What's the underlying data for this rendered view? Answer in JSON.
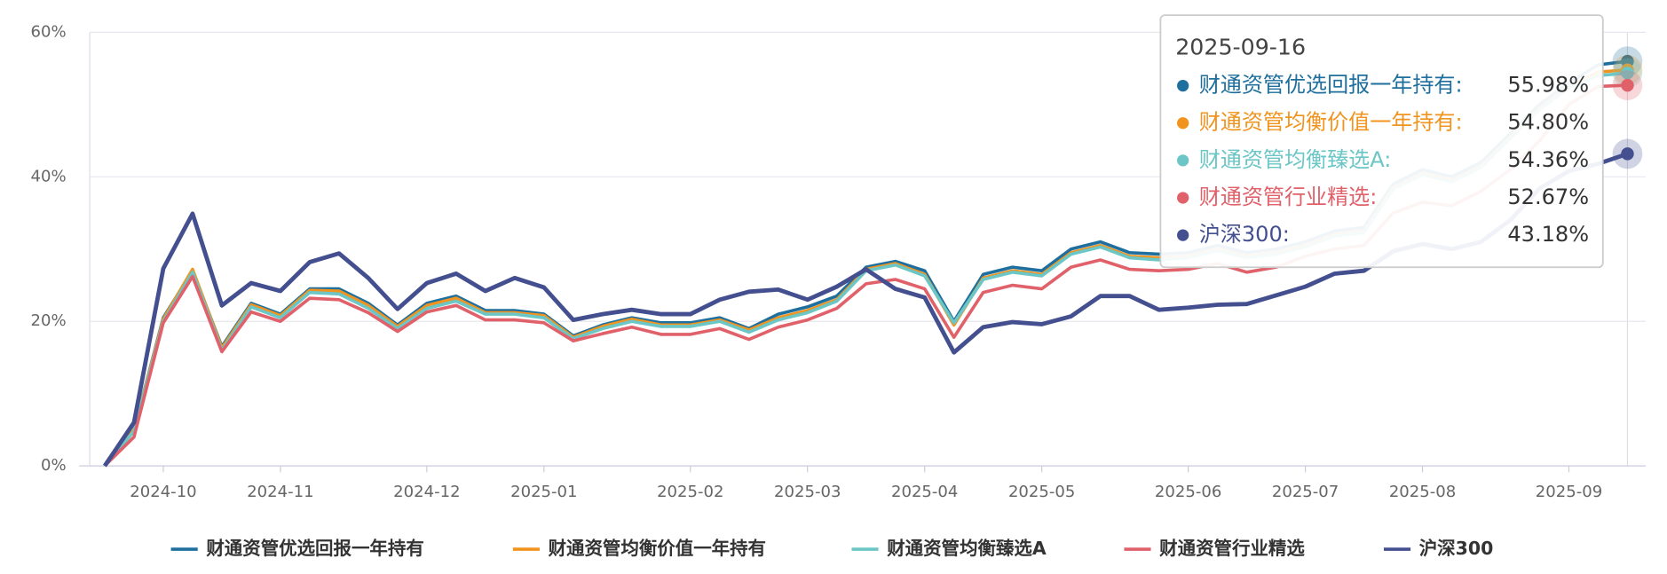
{
  "chart_data": {
    "type": "line",
    "categories": [
      null,
      null,
      "2024-10",
      null,
      null,
      null,
      "2024-11",
      null,
      null,
      null,
      null,
      "2024-12",
      null,
      null,
      null,
      "2025-01",
      null,
      null,
      null,
      null,
      "2025-02",
      null,
      null,
      null,
      "2025-03",
      null,
      null,
      null,
      "2025-04",
      null,
      null,
      null,
      "2025-05",
      null,
      null,
      null,
      null,
      "2025-06",
      null,
      null,
      null,
      "2025-07",
      null,
      null,
      null,
      "2025-08",
      null,
      null,
      null,
      null,
      "2025-09",
      null,
      null
    ],
    "ylim": [
      0,
      60
    ],
    "yticks": [
      {
        "value": 0,
        "label": "0%"
      },
      {
        "value": 20,
        "label": "20%"
      },
      {
        "value": 40,
        "label": "40%"
      },
      {
        "value": 60,
        "label": "60%"
      }
    ],
    "grid": true,
    "legend": "bottom",
    "series": [
      {
        "name": "财通资管优选回报一年持有",
        "color": "#1e6f9e",
        "values": [
          0,
          5,
          20.5,
          27,
          16.5,
          22.5,
          21,
          24.5,
          24.5,
          22.5,
          19.5,
          22.5,
          23.5,
          21.5,
          21.5,
          21,
          18,
          19.5,
          20.5,
          19.8,
          19.8,
          20.5,
          19,
          21,
          22,
          23.5,
          27.5,
          28.3,
          27,
          20,
          26.5,
          27.5,
          27,
          30,
          31,
          29.5,
          29.3,
          29.5,
          30.5,
          29.5,
          30,
          31,
          32.5,
          33,
          39,
          41,
          40,
          42,
          46,
          50,
          53,
          55.5,
          55.98
        ]
      },
      {
        "name": "财通资管均衡价值一年持有",
        "color": "#f0941f",
        "values": [
          0,
          5,
          20.3,
          27.2,
          16.3,
          22.3,
          20.8,
          24.3,
          24.2,
          22.2,
          19.3,
          22.2,
          23.2,
          21.2,
          21.2,
          20.8,
          17.8,
          19.3,
          20.3,
          19.5,
          19.5,
          20.2,
          18.8,
          20.5,
          21.5,
          23,
          27.2,
          28,
          26.5,
          19.5,
          26,
          27,
          26.5,
          29.5,
          30.5,
          29,
          28.8,
          29,
          30,
          29,
          29.5,
          30.5,
          32,
          32.5,
          38.5,
          40.5,
          39.5,
          41.5,
          45.5,
          49.5,
          52.5,
          54.5,
          54.8
        ]
      },
      {
        "name": "财通资管均衡臻选A",
        "color": "#6cc6c6",
        "values": [
          0,
          4.8,
          20,
          26.8,
          16,
          22,
          20.5,
          24,
          23.8,
          21.8,
          19,
          21.8,
          22.8,
          21,
          21,
          20.5,
          17.6,
          19,
          20,
          19.3,
          19.3,
          20,
          18.5,
          20.2,
          21.2,
          22.8,
          27,
          27.8,
          26.3,
          19.8,
          25.8,
          26.8,
          26.3,
          29.3,
          30.3,
          28.8,
          28.5,
          28.8,
          29.8,
          28.8,
          29.3,
          30.3,
          31.8,
          32.3,
          38.3,
          40.3,
          39.3,
          41.3,
          45.3,
          49.3,
          52.3,
          54,
          54.36
        ]
      },
      {
        "name": "财通资管行业精选",
        "color": "#e0616a",
        "values": [
          0,
          4,
          19.8,
          26.2,
          15.8,
          21.3,
          20,
          23.2,
          23,
          21.2,
          18.6,
          21.3,
          22.2,
          20.2,
          20.2,
          19.8,
          17.3,
          18.3,
          19.2,
          18.2,
          18.2,
          19,
          17.5,
          19.2,
          20.2,
          21.8,
          25.2,
          25.8,
          24.5,
          17.8,
          24,
          25,
          24.5,
          27.5,
          28.5,
          27.2,
          27,
          27.2,
          28,
          26.8,
          27.5,
          29,
          30,
          30.5,
          35,
          36.5,
          36,
          38,
          41,
          45,
          50,
          52.5,
          52.67
        ]
      },
      {
        "name": "沪深300",
        "color": "#434f8f",
        "values": [
          0,
          6,
          27.3,
          34.9,
          22.2,
          25.3,
          24.2,
          28.2,
          29.4,
          26,
          21.7,
          25.3,
          26.6,
          24.2,
          26,
          24.7,
          20.2,
          21,
          21.6,
          21,
          21,
          23,
          24.1,
          24.4,
          23,
          24.8,
          27.2,
          24.5,
          23.3,
          15.7,
          19.2,
          19.9,
          19.6,
          20.7,
          23.5,
          23.5,
          21.6,
          21.9,
          22.3,
          22.4,
          23.6,
          24.8,
          26.6,
          27,
          29.7,
          30.7,
          30,
          31,
          34,
          38.4,
          40.8,
          41.8,
          43.18
        ]
      }
    ],
    "tooltip": {
      "title": "2025-09-16",
      "items": [
        {
          "name": "财通资管优选回报一年持有:",
          "value": "55.98%"
        },
        {
          "name": "财通资管均衡价值一年持有:",
          "value": "54.80%"
        },
        {
          "name": "财通资管均衡臻选A:",
          "value": "54.36%"
        },
        {
          "name": "财通资管行业精选:",
          "value": "52.67%"
        },
        {
          "name": "沪深300:",
          "value": "43.18%"
        }
      ]
    }
  }
}
